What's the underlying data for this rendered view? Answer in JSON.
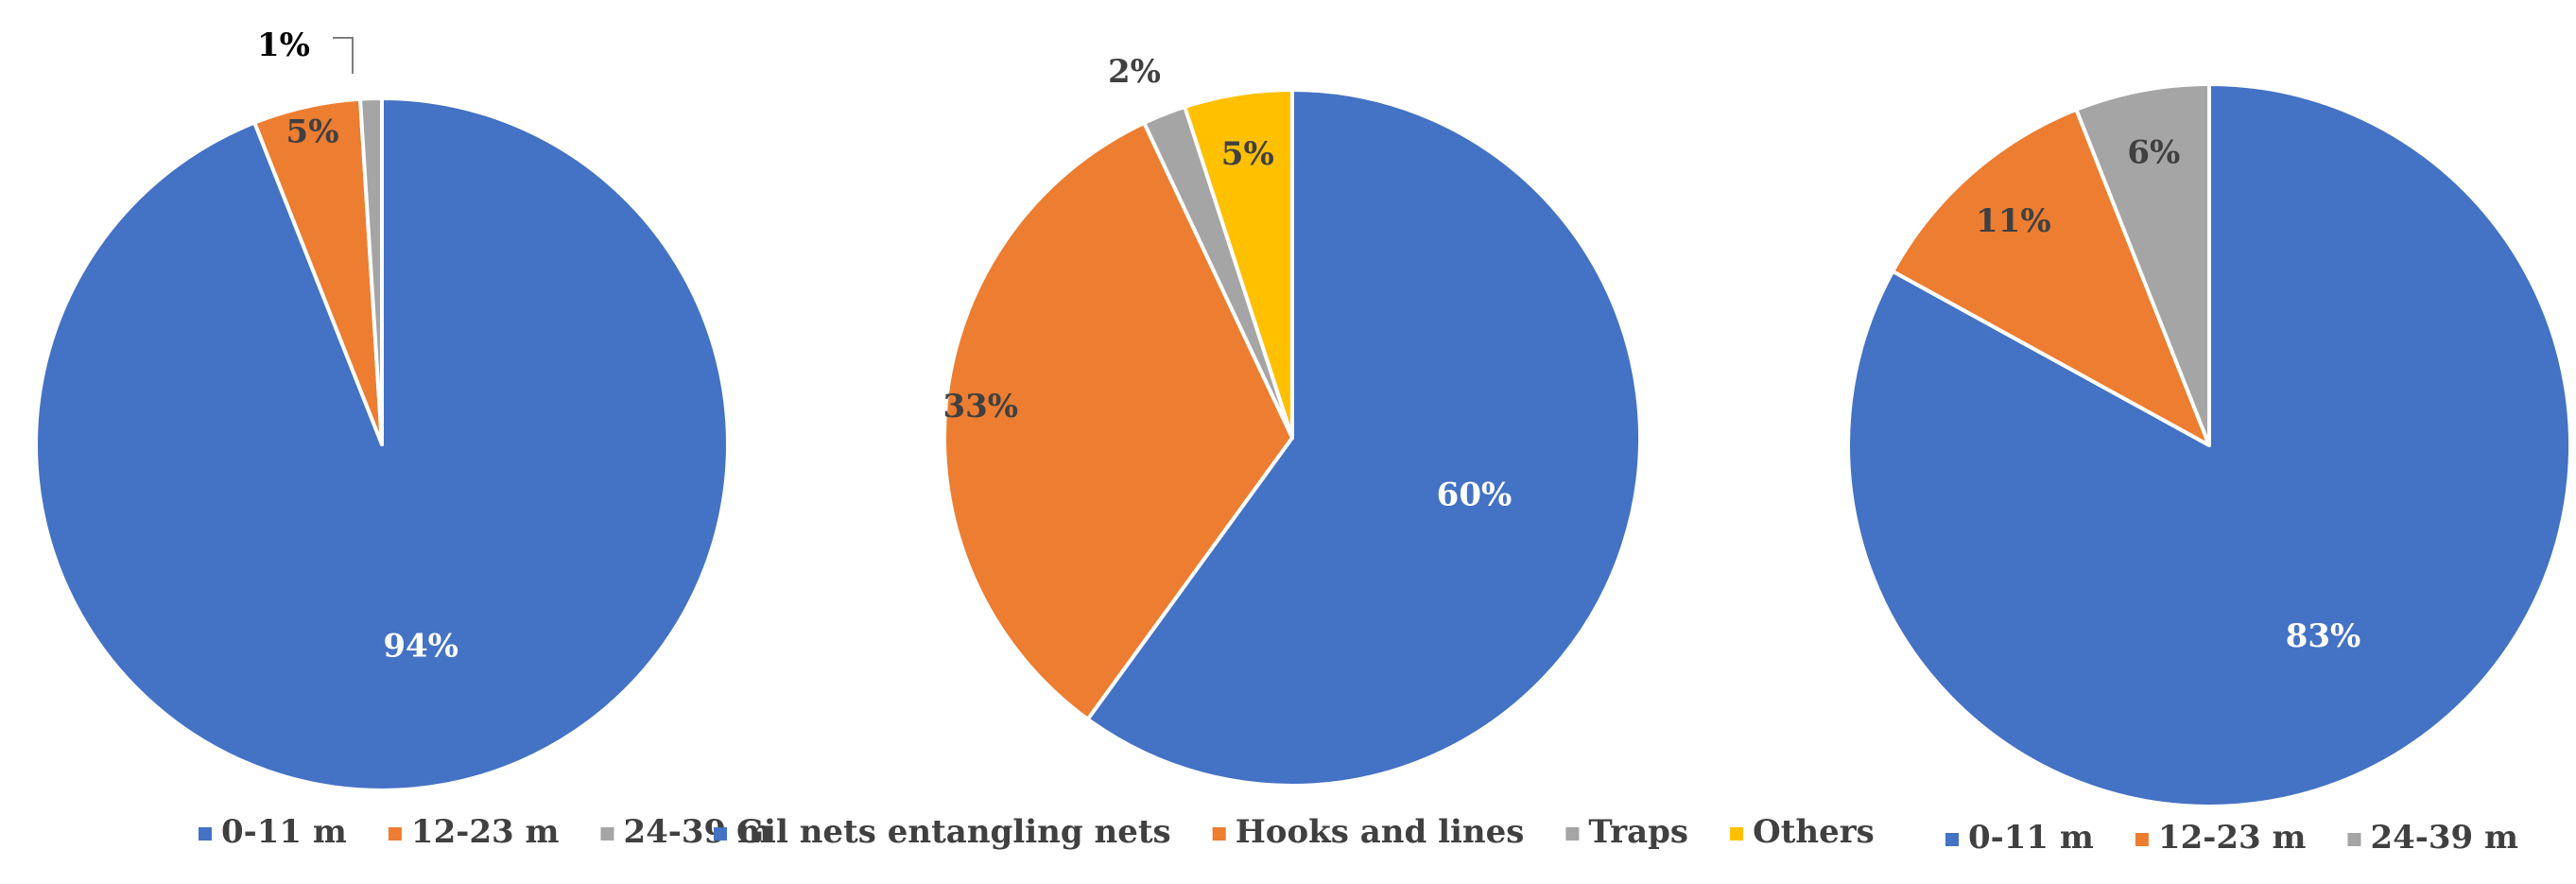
{
  "chart_data": [
    {
      "type": "pie",
      "slices": [
        {
          "label": "0-11 m",
          "value": 94,
          "display": "94%",
          "color": "#4472C4"
        },
        {
          "label": "12-23 m",
          "value": 5,
          "display": "5%",
          "color": "#ED7D31"
        },
        {
          "label": "24-39 m",
          "value": 1,
          "display": "1%",
          "color": "#A5A5A5"
        }
      ],
      "legend": [
        "0-11 m",
        "12-23 m",
        "24-39 m"
      ],
      "legend_position": "bottom",
      "start_angle": "12 o'clock",
      "direction": "clockwise"
    },
    {
      "type": "pie",
      "slices": [
        {
          "label": "Gil nets entangling nets",
          "value": 60,
          "display": "60%",
          "color": "#4472C4"
        },
        {
          "label": "Hooks and lines",
          "value": 33,
          "display": "33%",
          "color": "#ED7D31"
        },
        {
          "label": "Traps",
          "value": 2,
          "display": "2%",
          "color": "#A5A5A5"
        },
        {
          "label": "Others",
          "value": 5,
          "display": "5%",
          "color": "#FFC000"
        }
      ],
      "legend": [
        "Gil nets entangling nets",
        "Hooks and lines",
        "Traps",
        "Others"
      ],
      "legend_position": "bottom",
      "start_angle": "12 o'clock",
      "direction": "clockwise"
    },
    {
      "type": "pie",
      "slices": [
        {
          "label": "0-11 m",
          "value": 83,
          "display": "83%",
          "color": "#4472C4"
        },
        {
          "label": "12-23 m",
          "value": 11,
          "display": "11%",
          "color": "#ED7D31"
        },
        {
          "label": "24-39 m",
          "value": 6,
          "display": "6%",
          "color": "#A5A5A5"
        }
      ],
      "legend": [
        "0-11 m",
        "12-23 m",
        "24-39 m"
      ],
      "legend_position": "bottom",
      "start_angle": "12 o'clock",
      "direction": "clockwise"
    }
  ]
}
